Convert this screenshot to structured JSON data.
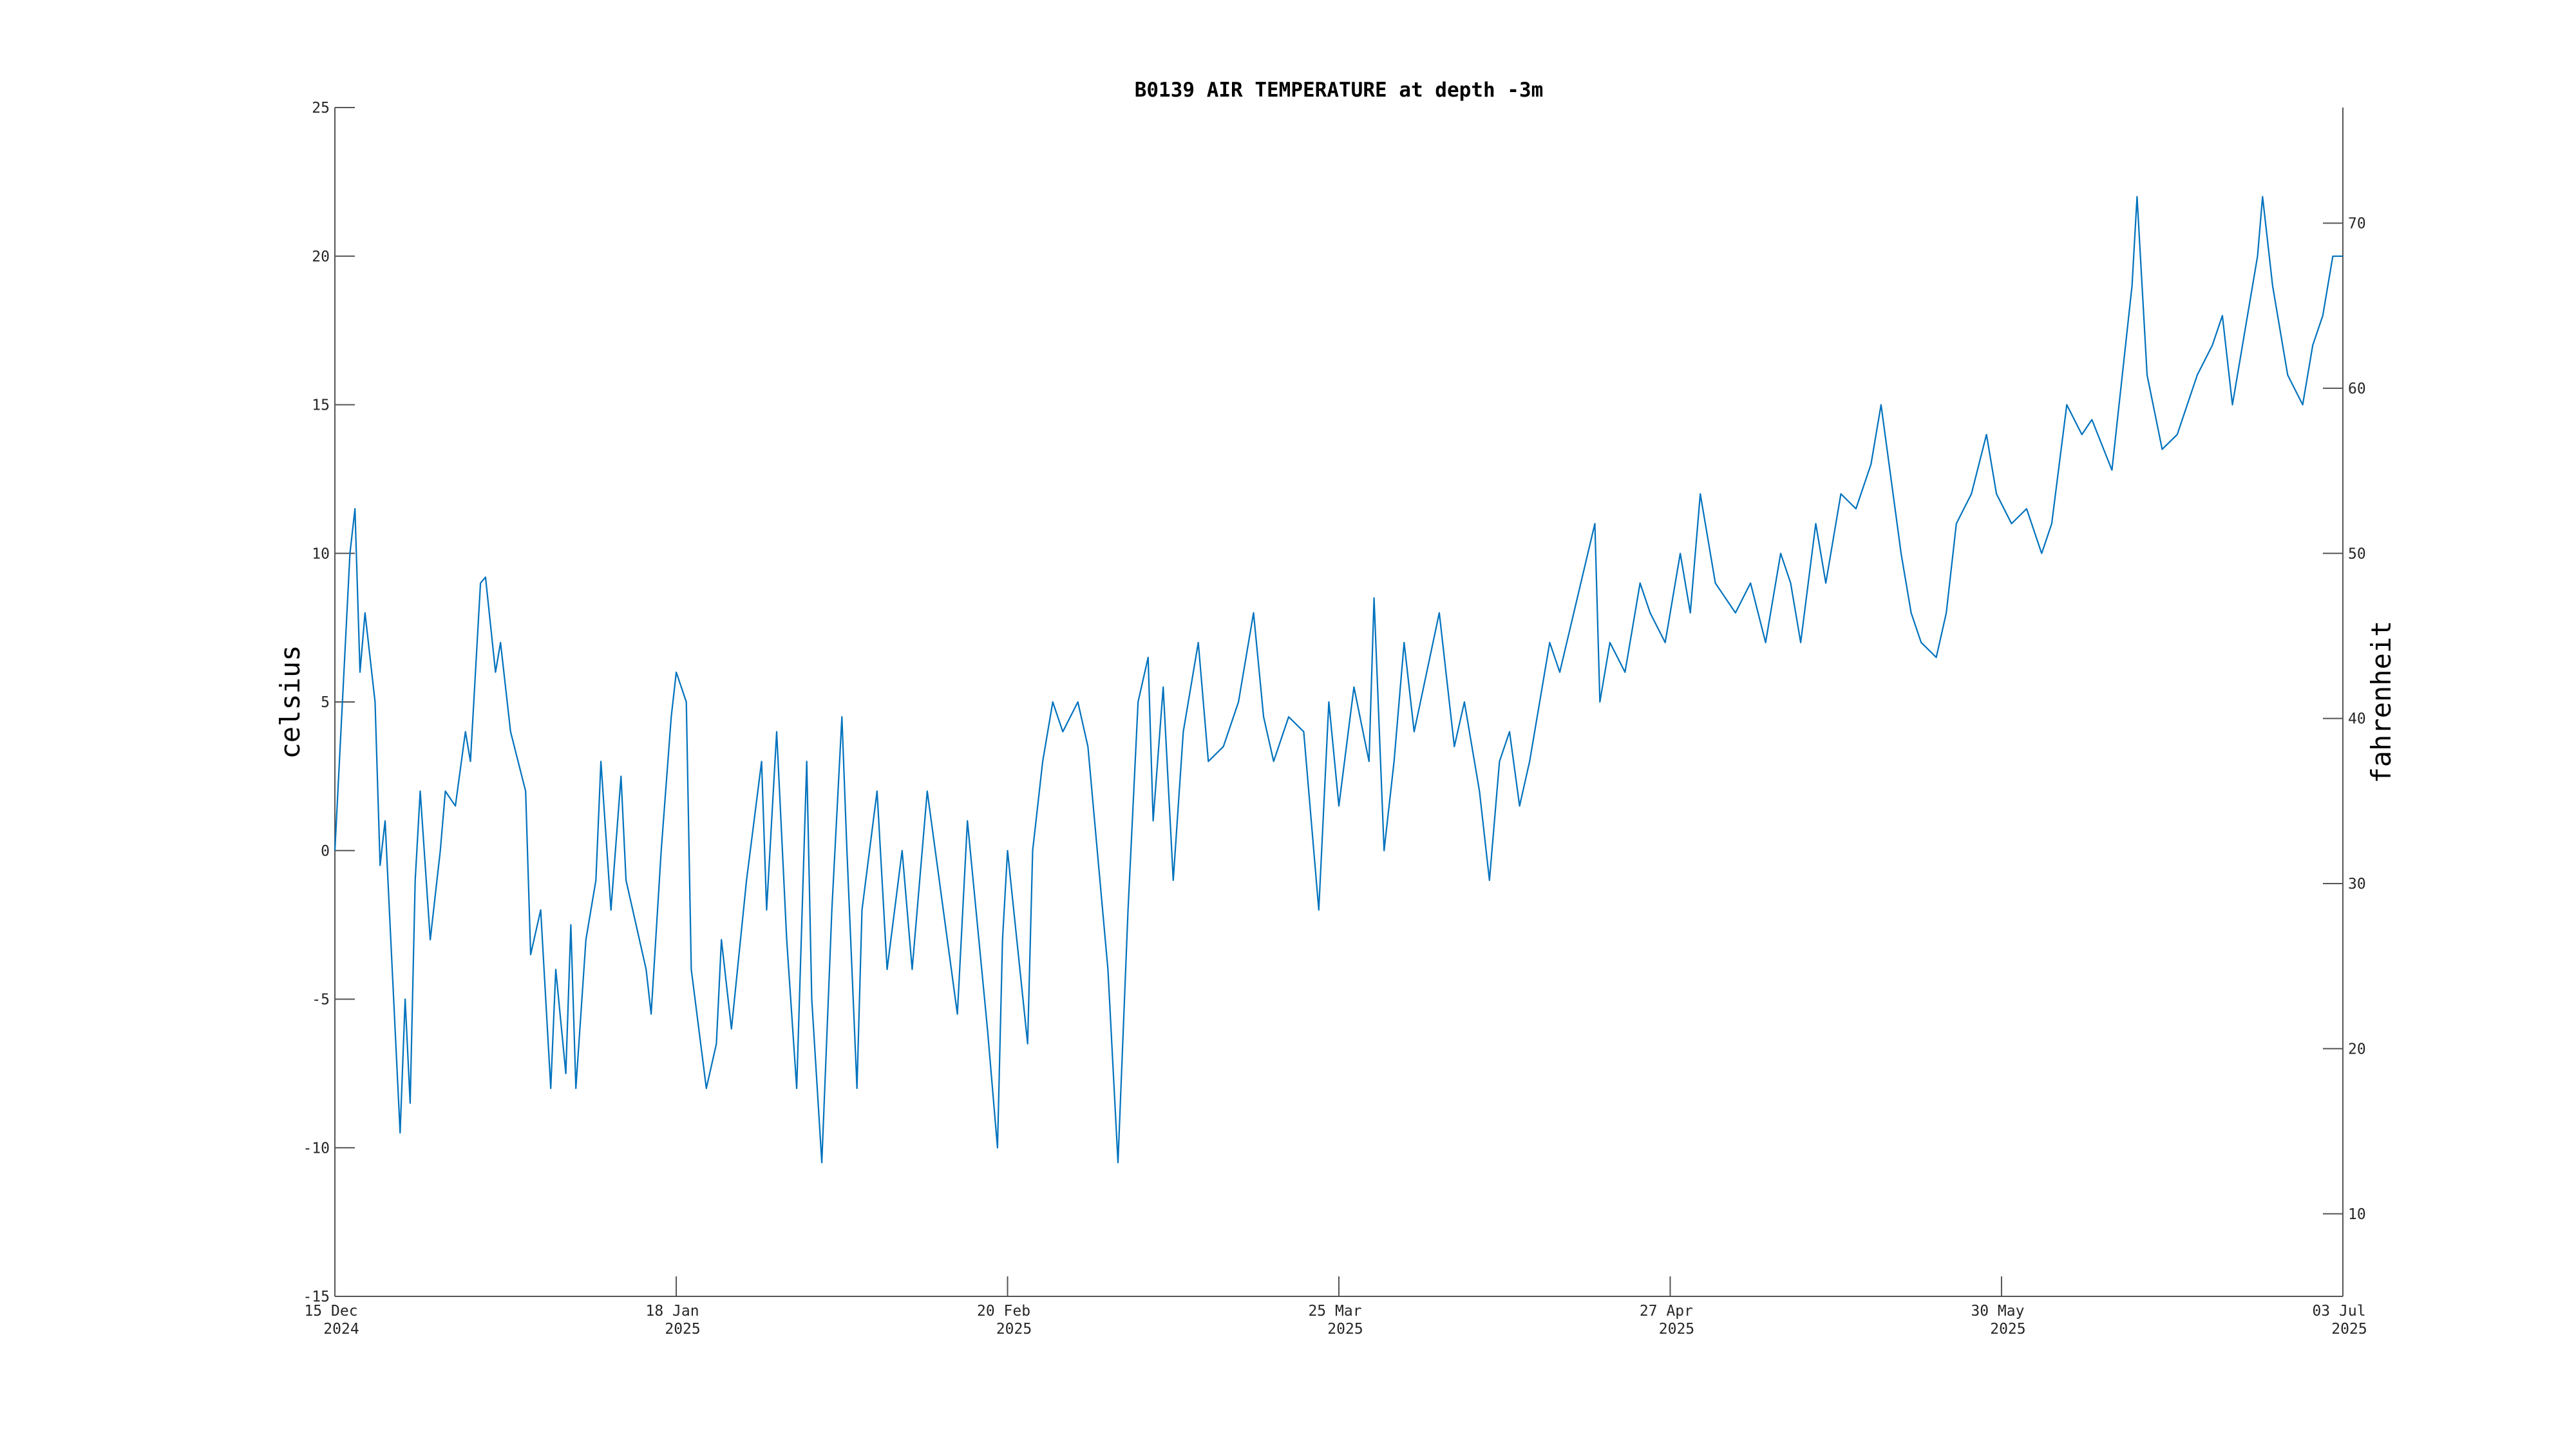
{
  "chart_data": {
    "type": "line",
    "title": "B0139 AIR TEMPERATURE at depth -3m",
    "ylabel": "celsius",
    "y2label": "fahrenheit",
    "xlim": [
      "2024-12-15T00:00",
      "2025-07-03T00:00"
    ],
    "xticks": [
      {
        "value": "2024-12-15T00:00",
        "label": [
          "15 Dec",
          "2024"
        ]
      },
      {
        "value": "2025-01-18T00:00",
        "label": [
          "18 Jan",
          "2025"
        ]
      },
      {
        "value": "2025-02-20T00:00",
        "label": [
          "20 Feb",
          "2025"
        ]
      },
      {
        "value": "2025-03-25T00:00",
        "label": [
          "25 Mar",
          "2025"
        ]
      },
      {
        "value": "2025-04-27T00:00",
        "label": [
          "27 Apr",
          "2025"
        ]
      },
      {
        "value": "2025-05-30T00:00",
        "label": [
          "30 May",
          "2025"
        ]
      },
      {
        "value": "2025-07-03T00:00",
        "label": [
          "03 Jul",
          "2025"
        ]
      }
    ],
    "ylim": [
      -15,
      25
    ],
    "yticks": [
      -15,
      -10,
      -5,
      0,
      5,
      10,
      15,
      20,
      25
    ],
    "y2lim": [
      5,
      77
    ],
    "y2ticks": [
      10,
      20,
      30,
      40,
      50,
      60,
      70
    ],
    "grid": false,
    "x": [
      "2024-12-15T00:00",
      "2024-12-16T12:00",
      "2024-12-17T00:00",
      "2024-12-17T12:00",
      "2024-12-18T00:00",
      "2024-12-19T00:00",
      "2024-12-19T12:00",
      "2024-12-20T00:00",
      "2024-12-20T12:00",
      "2024-12-21T12:00",
      "2024-12-22T00:00",
      "2024-12-22T12:00",
      "2024-12-23T00:00",
      "2024-12-23T12:00",
      "2024-12-24T12:00",
      "2024-12-25T12:00",
      "2024-12-26T00:00",
      "2024-12-27T00:00",
      "2024-12-28T00:00",
      "2024-12-28T12:00",
      "2024-12-29T12:00",
      "2024-12-30T00:00",
      "2024-12-31T00:00",
      "2024-12-31T12:00",
      "2025-01-01T12:00",
      "2025-01-03T00:00",
      "2025-01-03T12:00",
      "2025-01-04T12:00",
      "2025-01-05T12:00",
      "2025-01-06T00:00",
      "2025-01-07T00:00",
      "2025-01-07T12:00",
      "2025-01-08T00:00",
      "2025-01-09T00:00",
      "2025-01-10T00:00",
      "2025-01-10T12:00",
      "2025-01-11T12:00",
      "2025-01-12T12:00",
      "2025-01-13T00:00",
      "2025-01-15T00:00",
      "2025-01-15T12:00",
      "2025-01-16T12:00",
      "2025-01-17T12:00",
      "2025-01-18T00:00",
      "2025-01-19T00:00",
      "2025-01-19T12:00",
      "2025-01-21T00:00",
      "2025-01-22T00:00",
      "2025-01-22T12:00",
      "2025-01-23T12:00",
      "2025-01-25T00:00",
      "2025-01-26T12:00",
      "2025-01-27T00:00",
      "2025-01-28T00:00",
      "2025-01-29T00:00",
      "2025-01-30T00:00",
      "2025-01-31T00:00",
      "2025-01-31T12:00",
      "2025-02-01T12:00",
      "2025-02-02T12:00",
      "2025-02-03T12:00",
      "2025-02-04T00:00",
      "2025-02-05T00:00",
      "2025-02-05T12:00",
      "2025-02-07T00:00",
      "2025-02-08T00:00",
      "2025-02-09T12:00",
      "2025-02-10T12:00",
      "2025-02-12T00:00",
      "2025-02-14T00:00",
      "2025-02-15T00:00",
      "2025-02-16T00:00",
      "2025-02-18T00:00",
      "2025-02-19T00:00",
      "2025-02-19T12:00",
      "2025-02-20T00:00",
      "2025-02-22T00:00",
      "2025-02-22T12:00",
      "2025-02-23T12:00",
      "2025-02-24T12:00",
      "2025-02-25T12:00",
      "2025-02-27T00:00",
      "2025-02-28T00:00",
      "2025-03-02T00:00",
      "2025-03-03T00:00",
      "2025-03-04T00:00",
      "2025-03-05T00:00",
      "2025-03-06T00:00",
      "2025-03-06T12:00",
      "2025-03-07T12:00",
      "2025-03-08T12:00",
      "2025-03-09T12:00",
      "2025-03-11T00:00",
      "2025-03-12T00:00",
      "2025-03-13T12:00",
      "2025-03-15T00:00",
      "2025-03-16T12:00",
      "2025-03-17T12:00",
      "2025-03-18T12:00",
      "2025-03-20T00:00",
      "2025-03-21T12:00",
      "2025-03-23T00:00",
      "2025-03-24T00:00",
      "2025-03-25T00:00",
      "2025-03-26T12:00",
      "2025-03-28T00:00",
      "2025-03-28T12:00",
      "2025-03-29T12:00",
      "2025-03-30T12:00",
      "2025-03-31T12:00",
      "2025-04-01T12:00",
      "2025-04-04T00:00",
      "2025-04-05T12:00",
      "2025-04-06T12:00",
      "2025-04-08T00:00",
      "2025-04-09T00:00",
      "2025-04-10T00:00",
      "2025-04-11T00:00",
      "2025-04-12T00:00",
      "2025-04-13T00:00",
      "2025-04-14T00:00",
      "2025-04-15T00:00",
      "2025-04-16T00:00",
      "2025-04-19T12:00",
      "2025-04-20T00:00",
      "2025-04-21T00:00",
      "2025-04-22T12:00",
      "2025-04-24T00:00",
      "2025-04-25T00:00",
      "2025-04-26T12:00",
      "2025-04-28T00:00",
      "2025-04-29T00:00",
      "2025-04-30T00:00",
      "2025-05-01T12:00",
      "2025-05-03T12:00",
      "2025-05-05T00:00",
      "2025-05-06T12:00",
      "2025-05-08T00:00",
      "2025-05-09T00:00",
      "2025-05-10T00:00",
      "2025-05-11T12:00",
      "2025-05-12T12:00",
      "2025-05-14T00:00",
      "2025-05-15T12:00",
      "2025-05-17T00:00",
      "2025-05-18T00:00",
      "2025-05-20T00:00",
      "2025-05-21T00:00",
      "2025-05-22T00:00",
      "2025-05-23T12:00",
      "2025-05-24T12:00",
      "2025-05-25T12:00",
      "2025-05-27T00:00",
      "2025-05-28T12:00",
      "2025-05-29T12:00",
      "2025-05-31T00:00",
      "2025-06-01T12:00",
      "2025-06-03T00:00",
      "2025-06-04T00:00",
      "2025-06-05T12:00",
      "2025-06-07T00:00",
      "2025-06-08T00:00",
      "2025-06-10T00:00",
      "2025-06-12T00:00",
      "2025-06-12T12:00",
      "2025-06-13T12:00",
      "2025-06-15T00:00",
      "2025-06-16T12:00",
      "2025-06-18T12:00",
      "2025-06-20T00:00",
      "2025-06-21T00:00",
      "2025-06-22T00:00",
      "2025-06-23T00:00",
      "2025-06-24T12:00",
      "2025-06-25T00:00",
      "2025-06-26T00:00",
      "2025-06-27T12:00",
      "2025-06-29T00:00",
      "2025-06-30T00:00",
      "2025-07-01T00:00",
      "2025-07-02T00:00",
      "2025-07-03T00:00"
    ],
    "series": [
      {
        "color": "#0072bd",
        "values": [
          0,
          10,
          11.5,
          6,
          8,
          5,
          -0.5,
          1,
          -2.5,
          -9.5,
          -5,
          -8.5,
          -1,
          2,
          -3,
          0,
          2,
          1.5,
          4,
          3,
          9,
          9.2,
          6,
          7,
          4,
          2,
          -3.5,
          -2,
          -8,
          -4,
          -7.5,
          -2.5,
          -8,
          -3,
          -1,
          3,
          -2,
          2.5,
          -1,
          -4,
          -5.5,
          0,
          4.5,
          6,
          5,
          -4,
          -8,
          -6.5,
          -3,
          -6,
          -1,
          3,
          -2,
          4,
          -3,
          -8,
          3,
          -5,
          -10.5,
          -2,
          4.5,
          0,
          -8,
          -2,
          2,
          -4,
          0,
          -4,
          2,
          -3,
          -5.5,
          1,
          -6,
          -10,
          -3,
          0,
          -6.5,
          0,
          3,
          5,
          4,
          5,
          3.5,
          -4,
          -10.5,
          -2,
          5,
          6.5,
          1,
          5.5,
          -1,
          4,
          7,
          3,
          3.5,
          5,
          8,
          4.5,
          3,
          4.5,
          4,
          -2,
          5,
          1.5,
          5.5,
          3,
          8.5,
          0,
          3,
          7,
          4,
          8,
          3.5,
          5,
          2,
          -1,
          3,
          4,
          1.5,
          3,
          5,
          7,
          6,
          11,
          5,
          7,
          6,
          9,
          8,
          7,
          10,
          8,
          12,
          9,
          8,
          9,
          7,
          10,
          9,
          7,
          11,
          9,
          12,
          11.5,
          13,
          15,
          10,
          8,
          7,
          6.5,
          8,
          11,
          12,
          14,
          12,
          11,
          11.5,
          10,
          11,
          15,
          14,
          14.5,
          12.8,
          19,
          22,
          16,
          13.5,
          14,
          16,
          17,
          18,
          15,
          17,
          20,
          22,
          19,
          16,
          15,
          17,
          18,
          20,
          20
        ]
      }
    ]
  }
}
